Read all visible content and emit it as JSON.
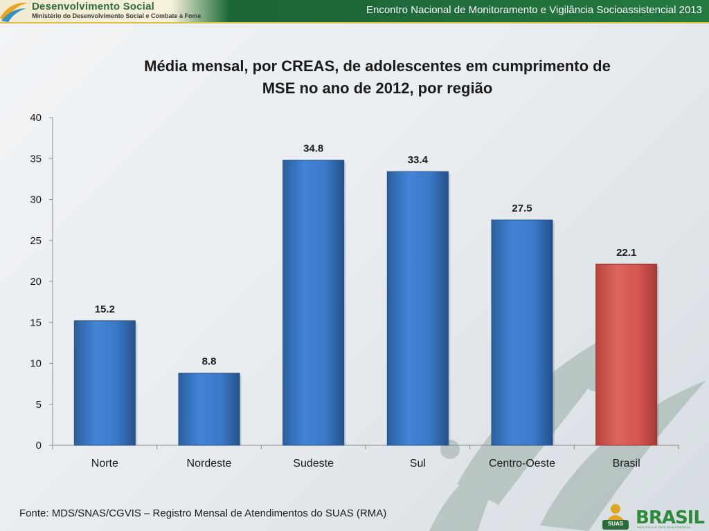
{
  "header": {
    "brand_title": "Desenvolvimento Social",
    "brand_subtitle": "Ministério do Desenvolvimento Social e Combate à Fome",
    "event_title": "Encontro Nacional de Monitoramento e Vigilância Socioassistencial 2013"
  },
  "chart_data": {
    "type": "bar",
    "title_line1": "Média mensal, por  CREAS, de adolescentes em cumprimento de",
    "title_line2": "MSE  no ano de 2012, por região",
    "categories": [
      "Norte",
      "Nordeste",
      "Sudeste",
      "Sul",
      "Centro-Oeste",
      "Brasil"
    ],
    "values": [
      15.2,
      8.8,
      34.8,
      33.4,
      27.5,
      22.1
    ],
    "data_labels": [
      "15.2",
      "8.8",
      "34.8",
      "33.4",
      "27.5",
      "22.1"
    ],
    "bar_colors": [
      "#3b78c8",
      "#3b78c8",
      "#3b78c8",
      "#3b78c8",
      "#3b78c8",
      "#d45650"
    ],
    "ylim": [
      0,
      40
    ],
    "yticks": [
      0,
      5,
      10,
      15,
      20,
      25,
      30,
      35,
      40
    ],
    "xlabel": "",
    "ylabel": "",
    "grid": false,
    "legend": "none"
  },
  "footer": {
    "source": "Fonte: MDS/SNAS/CGVIS – Registro Mensal de Atendimentos do SUAS (RMA)",
    "suas_logo_text": "SUAS",
    "brasil_logo_text": "BRASIL",
    "brasil_tagline": "PAÍS RICO É PAÍS SEM POBREZA"
  },
  "colors": {
    "header_green": "#1f6b3a",
    "accent_gold": "#d9c24a",
    "bar_blue": "#3b78c8",
    "bar_red": "#d45650"
  }
}
